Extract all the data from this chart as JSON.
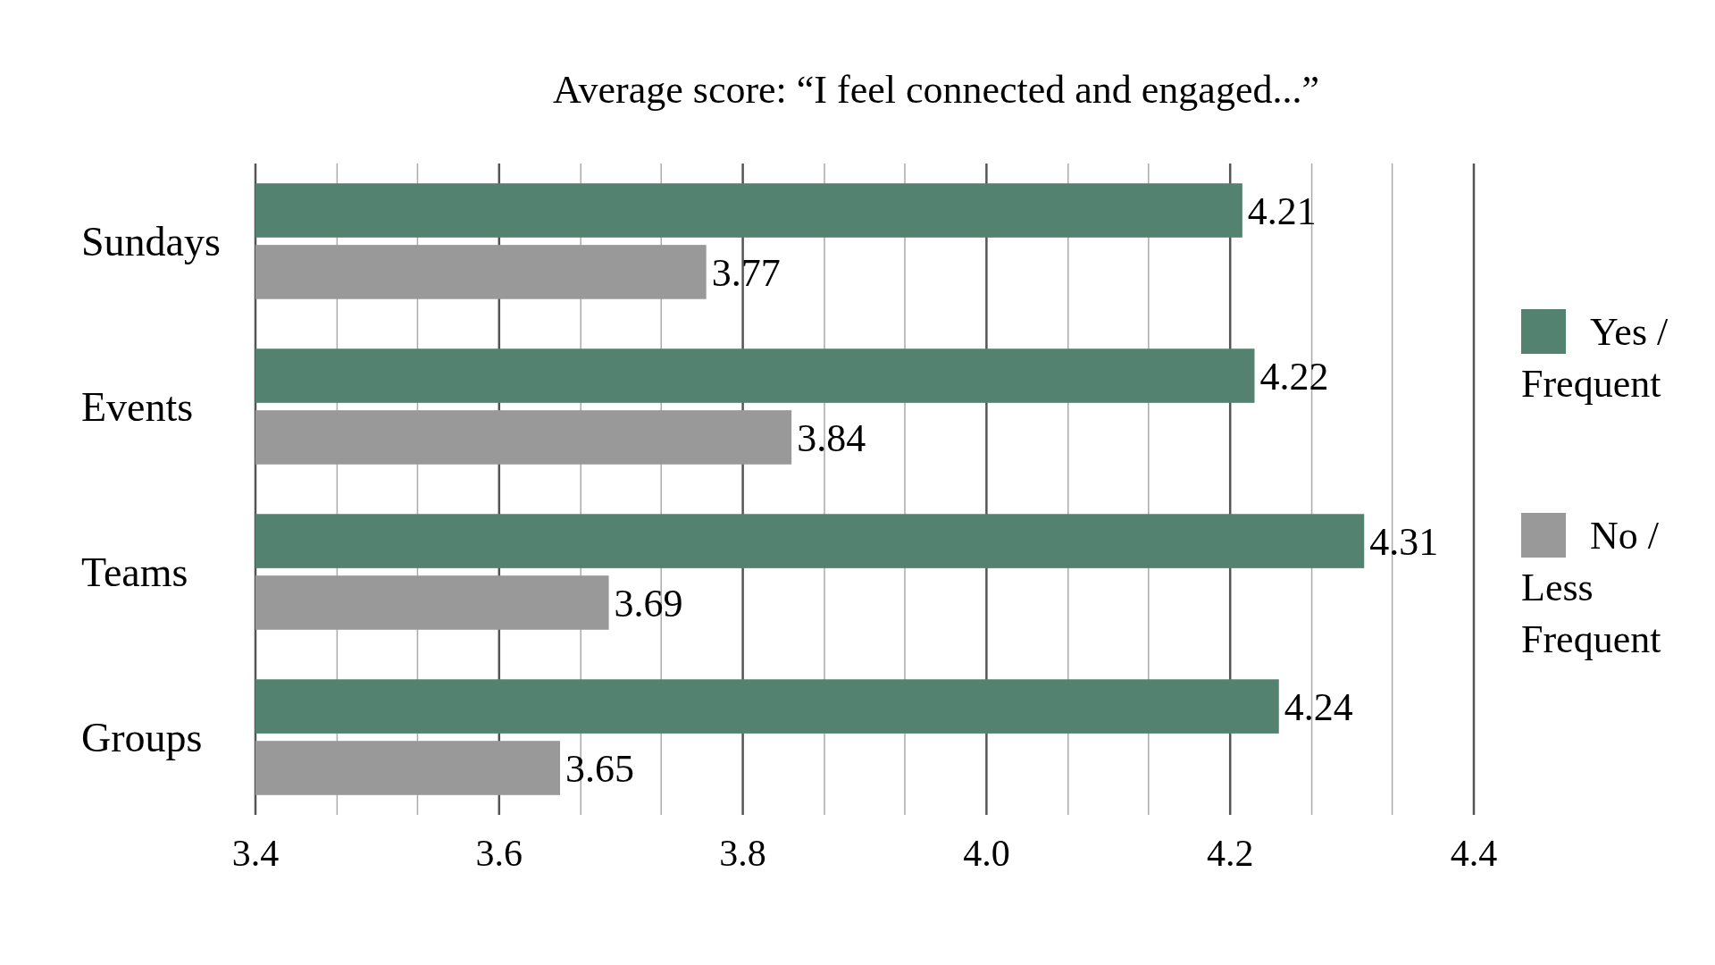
{
  "chart_data": {
    "type": "bar",
    "orientation": "horizontal",
    "title": "Average score: “I feel connected and engaged...”",
    "categories": [
      "Sundays",
      "Events",
      "Teams",
      "Groups"
    ],
    "series": [
      {
        "name": "Yes / Frequent",
        "color": "#548270",
        "values": [
          4.21,
          4.22,
          4.31,
          4.24
        ]
      },
      {
        "name": "No / Less Frequent",
        "color": "#999999",
        "values": [
          3.77,
          3.84,
          3.69,
          3.65
        ]
      }
    ],
    "xlim": [
      3.4,
      4.4
    ],
    "xticks": [
      3.4,
      {
        "value": 3.467,
        "label": null
      },
      {
        "value": 3.533,
        "label": null
      },
      3.6,
      {
        "value": 3.667,
        "label": null
      },
      {
        "value": 3.733,
        "label": null
      },
      3.8,
      {
        "value": 3.867,
        "label": null
      },
      {
        "value": 3.933,
        "label": null
      },
      "4.0",
      {
        "value": 4.067,
        "label": null
      },
      {
        "value": 4.133,
        "label": null
      },
      4.2,
      {
        "value": 4.267,
        "label": null
      },
      {
        "value": 4.333,
        "label": null
      },
      4.4
    ],
    "grid": true,
    "data_labels": true,
    "legend": "right"
  }
}
